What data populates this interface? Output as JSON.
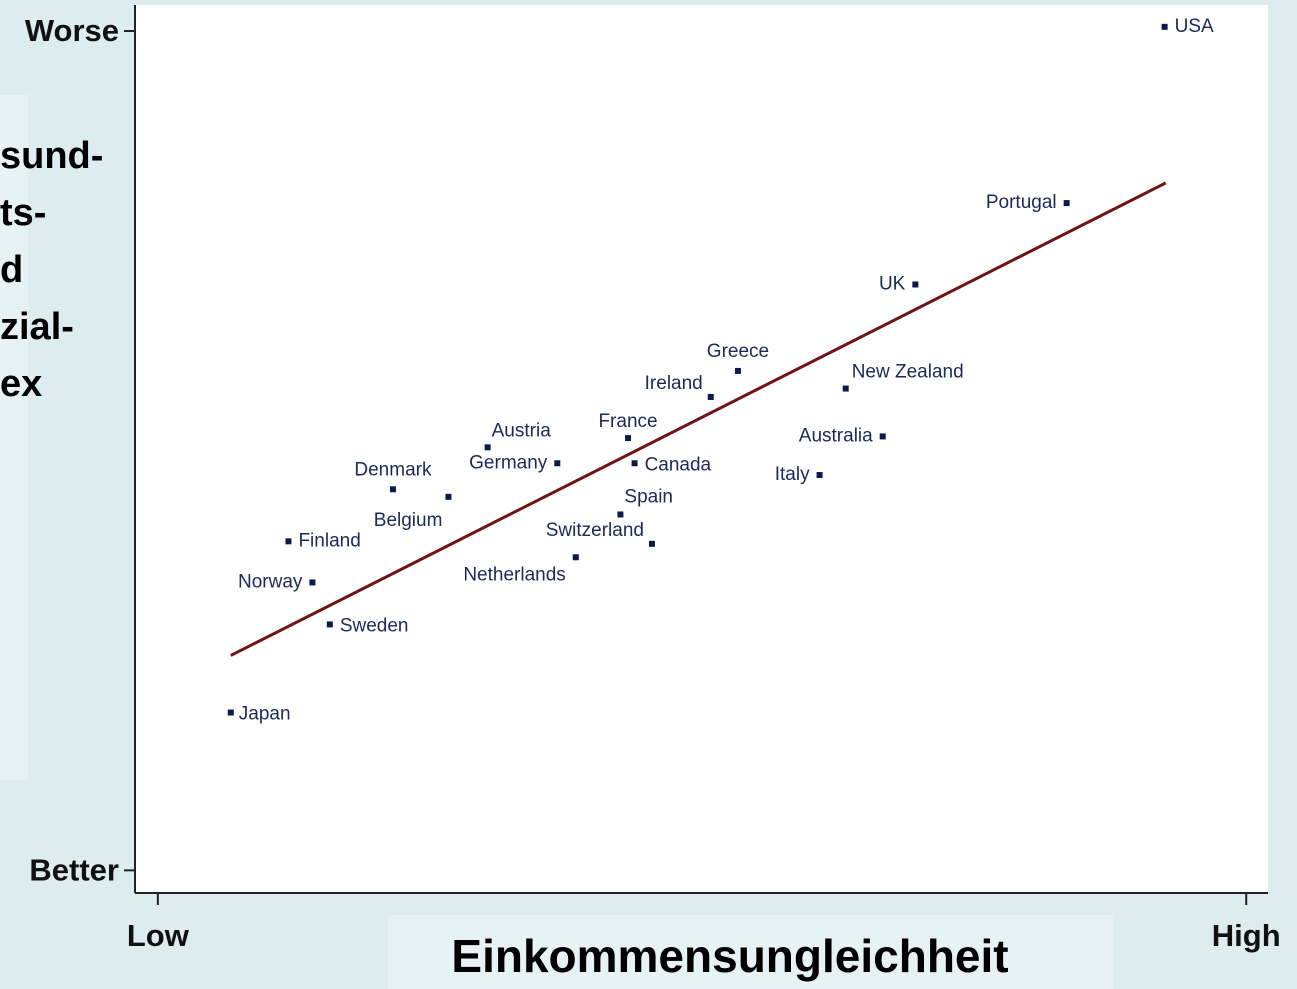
{
  "chart_data": {
    "type": "scatter",
    "ylabel_lines": [
      "sund-",
      "ts-",
      "d",
      "zial-",
      "ex"
    ],
    "xlabel": "Einkommensungleichheit",
    "xlim": [
      -2.1,
      102.0
    ],
    "ylim": [
      -2.7,
      103.1
    ],
    "xticks": [
      {
        "value": 0,
        "label": "Low"
      },
      {
        "value": 100,
        "label": "High"
      }
    ],
    "yticks": [
      {
        "value": 0,
        "label": "Better"
      },
      {
        "value": 100,
        "label": "Worse"
      }
    ],
    "color": "#0a1a4a",
    "labels": [
      "USA",
      "Portugal",
      "UK",
      "New Zealand",
      "Greece",
      "Ireland",
      "Australia",
      "France",
      "Canada",
      "Italy",
      "Austria",
      "Germany",
      "Denmark",
      "Belgium",
      "Spain",
      "Switzerland",
      "Netherlands",
      "Finland",
      "Norway",
      "Sweden",
      "Japan"
    ],
    "x": [
      92.5,
      83.5,
      69.6,
      63.2,
      53.3,
      50.8,
      66.6,
      43.2,
      43.8,
      60.8,
      30.3,
      36.7,
      21.6,
      26.7,
      42.5,
      45.4,
      38.4,
      12.0,
      14.2,
      15.8,
      6.7
    ],
    "y": [
      100.5,
      79.5,
      69.8,
      57.4,
      59.5,
      56.4,
      51.7,
      51.5,
      48.5,
      47.1,
      50.4,
      48.5,
      45.4,
      44.5,
      42.4,
      38.9,
      37.3,
      39.2,
      34.3,
      29.3,
      18.8
    ],
    "trendline": {
      "color": "#6e1414",
      "x": [
        6.7,
        92.6
      ],
      "y": [
        25.6,
        81.9
      ]
    }
  }
}
